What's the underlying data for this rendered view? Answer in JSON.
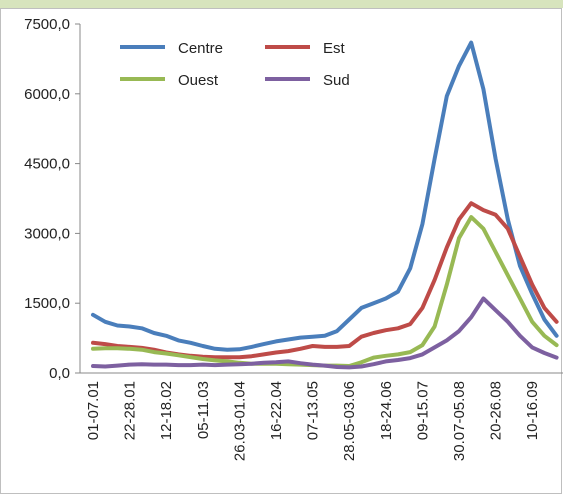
{
  "chart_data": {
    "type": "line",
    "categories": [
      "01-07.01",
      null,
      null,
      "22-28.01",
      null,
      null,
      "12-18.02",
      null,
      null,
      "05-11.03",
      null,
      null,
      "26.03-01.04",
      null,
      null,
      "16-22.04",
      null,
      null,
      "07-13.05",
      null,
      null,
      "28.05-03.06",
      null,
      null,
      "18-24.06",
      null,
      null,
      "09-15.07",
      null,
      null,
      "30.07-05.08",
      null,
      null,
      "20-26.08",
      null,
      null,
      "10-16.09",
      null,
      null
    ],
    "series": [
      {
        "name": "Centre",
        "color": "#4a7ebb",
        "values": [
          1250,
          1100,
          1020,
          1000,
          960,
          860,
          800,
          700,
          650,
          580,
          520,
          500,
          510,
          560,
          620,
          680,
          720,
          760,
          780,
          800,
          900,
          1150,
          1400,
          1500,
          1600,
          1750,
          2250,
          3200,
          4600,
          5950,
          6600,
          7100,
          6100,
          4600,
          3300,
          2300,
          1700,
          1150,
          800
        ]
      },
      {
        "name": "Est",
        "color": "#be4b48",
        "values": [
          650,
          620,
          580,
          560,
          540,
          500,
          440,
          400,
          370,
          350,
          340,
          340,
          340,
          360,
          400,
          440,
          470,
          520,
          580,
          560,
          560,
          580,
          780,
          860,
          920,
          960,
          1050,
          1400,
          2000,
          2700,
          3300,
          3650,
          3500,
          3400,
          3100,
          2500,
          1900,
          1400,
          1100
        ]
      },
      {
        "name": "Ouest",
        "color": "#98b954",
        "values": [
          520,
          530,
          530,
          520,
          500,
          450,
          420,
          380,
          340,
          300,
          270,
          250,
          220,
          200,
          200,
          200,
          190,
          180,
          170,
          160,
          160,
          150,
          230,
          330,
          370,
          400,
          450,
          600,
          1000,
          1900,
          2900,
          3350,
          3100,
          2600,
          2100,
          1600,
          1100,
          800,
          600
        ]
      },
      {
        "name": "Sud",
        "color": "#7d60a0",
        "values": [
          150,
          140,
          160,
          180,
          190,
          180,
          180,
          170,
          170,
          180,
          170,
          180,
          190,
          200,
          220,
          230,
          250,
          210,
          180,
          160,
          130,
          120,
          140,
          190,
          250,
          280,
          320,
          400,
          550,
          700,
          900,
          1200,
          1600,
          1350,
          1100,
          800,
          550,
          430,
          330
        ]
      }
    ],
    "ylim": [
      0,
      7500
    ],
    "yticks": [
      {
        "value": 0,
        "label": "0,0"
      },
      {
        "value": 1500,
        "label": "1500,0"
      },
      {
        "value": 3000,
        "label": "3000,0"
      },
      {
        "value": 4500,
        "label": "4500,0"
      },
      {
        "value": 6000,
        "label": "6000,0"
      },
      {
        "value": 7500,
        "label": "7500,0"
      }
    ],
    "grid": false,
    "legend": "top-left"
  }
}
